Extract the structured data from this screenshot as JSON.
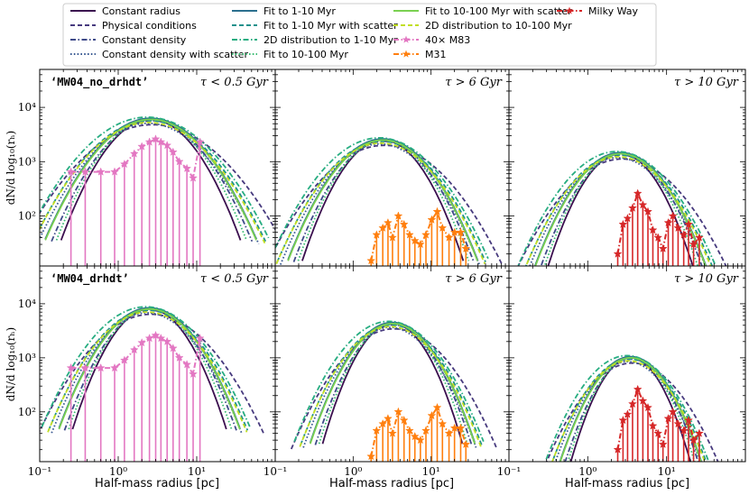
{
  "chart_data": {
    "type": "line",
    "xscale": "log",
    "yscale": "log",
    "xlim": [
      0.1,
      100
    ],
    "ylim": [
      12,
      50000
    ],
    "xlabel": "Half-mass radius [pc]",
    "ylabel": "dN/d log₁₀(rₕ)",
    "xticks": [
      "10⁻¹",
      "10⁰",
      "10¹"
    ],
    "yticks": [
      "10²",
      "10³",
      "10⁴"
    ],
    "legend": [
      {
        "label": "Constant radius",
        "color": "#3b0f4f",
        "dash": "solid",
        "marker": "none"
      },
      {
        "label": "Physical conditions",
        "color": "#473a7e",
        "dash": "dashed",
        "marker": "none"
      },
      {
        "label": "Constant density",
        "color": "#3e4a89",
        "dash": "dashdot",
        "marker": "none"
      },
      {
        "label": "Constant density with scatter",
        "color": "#3a5a92",
        "dash": "dotted",
        "marker": "none"
      },
      {
        "label": "Fit to 1-10 Myr",
        "color": "#2b6f8e",
        "dash": "solid",
        "marker": "none"
      },
      {
        "label": "Fit to 1-10 Myr with scatter",
        "color": "#21918c",
        "dash": "dashed",
        "marker": "none"
      },
      {
        "label": "2D distribution to 1-10 Myr",
        "color": "#27ad81",
        "dash": "dashdot",
        "marker": "none"
      },
      {
        "label": "Fit to 10-100 Myr",
        "color": "#3dbc74",
        "dash": "dotted",
        "marker": "none"
      },
      {
        "label": "Fit to 10-100 Myr with scatter",
        "color": "#7ad151",
        "dash": "solid",
        "marker": "none"
      },
      {
        "label": "2D distribution to 10-100 Myr",
        "color": "#c2df23",
        "dash": "dashed",
        "marker": "none"
      },
      {
        "label": "40× M83",
        "color": "#e377c2",
        "dash": "dashdot",
        "marker": "star"
      },
      {
        "label": "M31",
        "color": "#ff7f0e",
        "dash": "dashdot",
        "marker": "star"
      },
      {
        "label": "Milky Way",
        "color": "#d62728",
        "dash": "dashdot",
        "marker": "star"
      }
    ],
    "panels": [
      {
        "row": 0,
        "col": 0,
        "run_label": "‘MW04_no_drhdt’",
        "age_label": "τ < 0.5 Gyr",
        "obs": "M83",
        "peak_x": 2.6,
        "peak_y": 6000,
        "width": 0.42
      },
      {
        "row": 0,
        "col": 1,
        "run_label": "",
        "age_label": "τ > 6 Gyr",
        "obs": "M31",
        "peak_x": 2.4,
        "peak_y": 2500,
        "width": 0.38
      },
      {
        "row": 0,
        "col": 2,
        "run_label": "",
        "age_label": "τ > 10 Gyr",
        "obs": "MW",
        "peak_x": 2.6,
        "peak_y": 1400,
        "width": 0.35
      },
      {
        "row": 1,
        "col": 0,
        "run_label": "‘MW04_drhdt’",
        "age_label": "τ < 0.5 Gyr",
        "obs": "M83",
        "peak_x": 2.5,
        "peak_y": 8000,
        "width": 0.36
      },
      {
        "row": 1,
        "col": 1,
        "run_label": "",
        "age_label": "τ > 6 Gyr",
        "obs": "M31",
        "peak_x": 3.2,
        "peak_y": 4300,
        "width": 0.33
      },
      {
        "row": 1,
        "col": 2,
        "run_label": "",
        "age_label": "τ > 10 Gyr",
        "obs": "MW",
        "peak_x": 3.5,
        "peak_y": 1000,
        "width": 0.3
      }
    ],
    "obs_data": {
      "M83": {
        "x": [
          0.25,
          0.38,
          0.6,
          0.9,
          1.2,
          1.6,
          2.0,
          2.5,
          3.0,
          3.5,
          4.2,
          5.0,
          6.0,
          7.5,
          9.0,
          11.0
        ],
        "y": [
          650,
          650,
          650,
          650,
          900,
          1400,
          1900,
          2300,
          2600,
          2300,
          2000,
          1500,
          1000,
          750,
          500,
          2300
        ]
      },
      "M31": {
        "x": [
          1.7,
          2.0,
          2.4,
          2.8,
          3.2,
          3.8,
          4.5,
          5.3,
          6.2,
          7.3,
          8.6,
          10.2,
          12.0,
          14.0,
          17.0,
          20.0,
          24.0,
          28.0
        ],
        "y": [
          15,
          45,
          60,
          75,
          40,
          100,
          70,
          45,
          35,
          30,
          45,
          85,
          120,
          60,
          40,
          50,
          50,
          25
        ]
      },
      "MW": {
        "x": [
          2.4,
          2.8,
          3.2,
          3.7,
          4.3,
          5.0,
          5.8,
          6.7,
          7.8,
          9.0,
          10.5,
          12.0,
          14.0,
          16.5,
          19.0,
          22.0,
          26.0
        ],
        "y": [
          20,
          70,
          90,
          140,
          260,
          160,
          120,
          55,
          40,
          25,
          75,
          100,
          60,
          45,
          70,
          30,
          40
        ]
      }
    }
  }
}
